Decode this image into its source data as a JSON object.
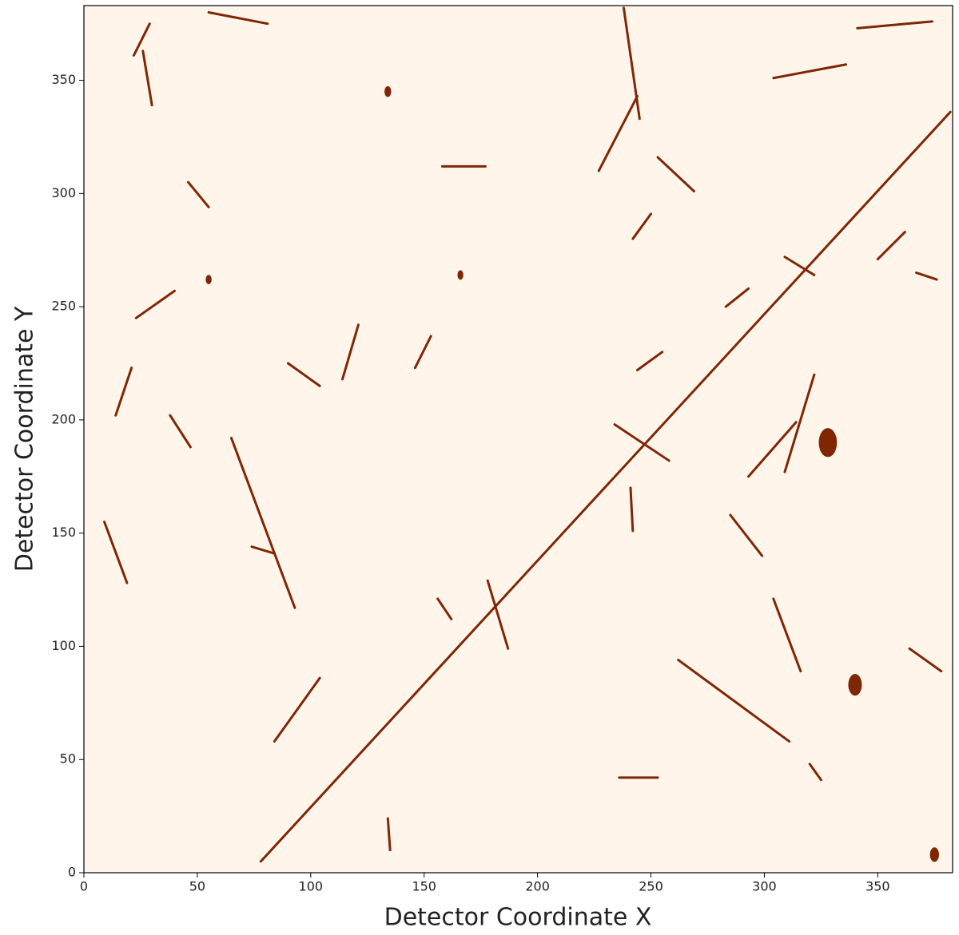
{
  "chart_data": {
    "type": "image",
    "x_label": "Detector Coordinate X",
    "y_label": "Detector Coordinate Y",
    "xlim": [
      0,
      383
    ],
    "ylim": [
      0,
      383
    ],
    "xticks": [
      0,
      50,
      100,
      150,
      200,
      250,
      300,
      350
    ],
    "yticks": [
      0,
      50,
      100,
      150,
      200,
      250,
      300,
      350
    ],
    "background": "#fff5eb",
    "color": "#7f2704",
    "tracks": [
      [
        78,
        5,
        382,
        336
      ],
      [
        234,
        198,
        258,
        182
      ],
      [
        65,
        192,
        93,
        117
      ],
      [
        9,
        155,
        19,
        128
      ],
      [
        84,
        58,
        104,
        86
      ],
      [
        262,
        94,
        311,
        58
      ],
      [
        304,
        121,
        316,
        89
      ],
      [
        178,
        129,
        187,
        99
      ],
      [
        238,
        382,
        245,
        333
      ],
      [
        227,
        310,
        244,
        343
      ],
      [
        23,
        245,
        40,
        257
      ],
      [
        14,
        202,
        21,
        223
      ],
      [
        114,
        218,
        121,
        242
      ],
      [
        146,
        223,
        153,
        237
      ],
      [
        253,
        316,
        269,
        301
      ],
      [
        350,
        271,
        362,
        283
      ],
      [
        304,
        351,
        336,
        357
      ],
      [
        341,
        373,
        374,
        376
      ],
      [
        55,
        380,
        81,
        375
      ],
      [
        22,
        361,
        29,
        375
      ],
      [
        26,
        363,
        30,
        339
      ],
      [
        285,
        158,
        299,
        140
      ],
      [
        293,
        175,
        314,
        199
      ],
      [
        309,
        177,
        322,
        220
      ],
      [
        364,
        99,
        378,
        89
      ],
      [
        320,
        48,
        325,
        41
      ],
      [
        236,
        42,
        253,
        42
      ],
      [
        90,
        225,
        104,
        215
      ],
      [
        38,
        202,
        47,
        188
      ],
      [
        242,
        280,
        250,
        291
      ],
      [
        283,
        250,
        293,
        258
      ],
      [
        309,
        272,
        322,
        264
      ],
      [
        244,
        222,
        255,
        230
      ],
      [
        158,
        312,
        177,
        312
      ],
      [
        46,
        305,
        55,
        294
      ],
      [
        134,
        24,
        135,
        10
      ],
      [
        241,
        170,
        242,
        151
      ],
      [
        74,
        144,
        84,
        141
      ],
      [
        156,
        121,
        162,
        112
      ],
      [
        367,
        265,
        376,
        262
      ]
    ],
    "blobs": [
      [
        328,
        190,
        4
      ],
      [
        340,
        83,
        3
      ],
      [
        134,
        345,
        1.5
      ],
      [
        375,
        8,
        2
      ],
      [
        55,
        262,
        1.3
      ],
      [
        166,
        264,
        1.3
      ]
    ]
  }
}
